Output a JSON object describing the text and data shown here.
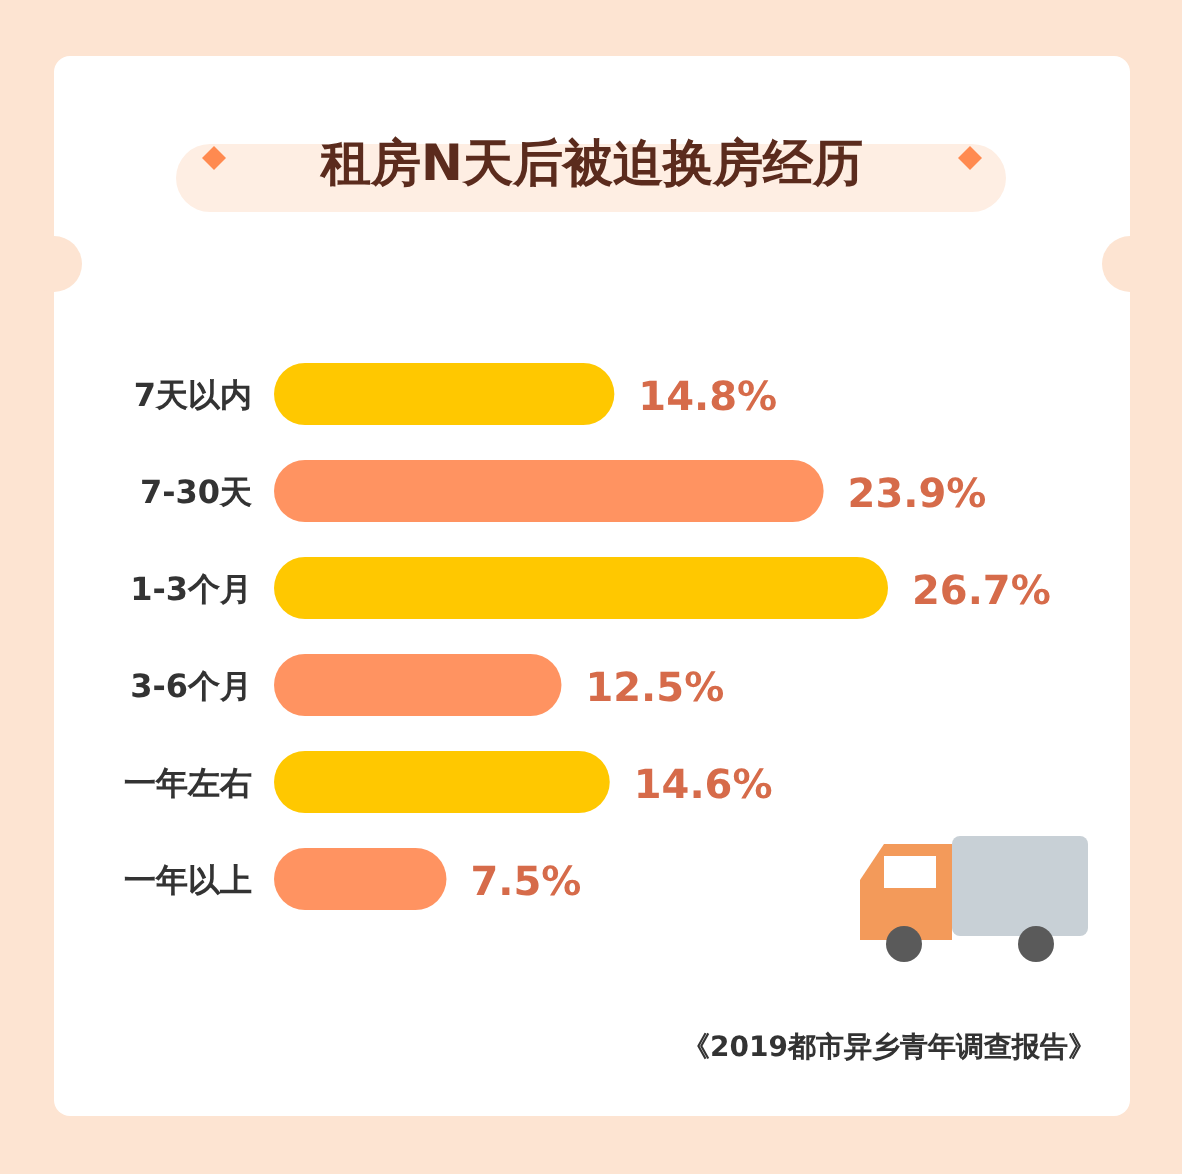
{
  "chart_data": {
    "type": "bar",
    "orientation": "horizontal",
    "title": "租房N天后被迫换房经历",
    "categories": [
      "7天以内",
      "7-30天",
      "1-3个月",
      "3-6个月",
      "一年左右",
      "一年以上"
    ],
    "values": [
      14.8,
      23.9,
      26.7,
      12.5,
      14.6,
      7.5
    ],
    "value_labels": [
      "14.8%",
      "23.9%",
      "26.7%",
      "12.5%",
      "14.6%",
      "7.5%"
    ],
    "colors": [
      "#ffc800",
      "#ff9361",
      "#ffc800",
      "#ff9361",
      "#ffc800",
      "#ff9361"
    ],
    "annotations": [
      "《2019都市异乡青年调查报告》"
    ]
  }
}
